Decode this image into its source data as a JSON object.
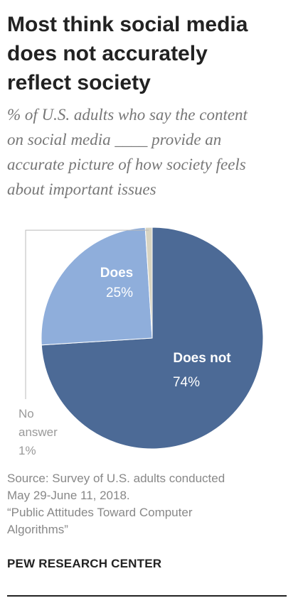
{
  "header": {
    "title_lines": [
      "Most think social media",
      "does not accurately",
      "reflect society"
    ],
    "subtitle_lines": [
      "% of U.S. adults who say the content",
      "on social media ____ provide an",
      "accurate picture of how society feels",
      "about important issues"
    ]
  },
  "chart_data": {
    "type": "pie",
    "title": "Most think social media does not accurately reflect society",
    "subtitle": "% of U.S. adults who say the content on social media ____ provide an accurate picture of how society feels about important issues",
    "slices": [
      {
        "label": "Does not",
        "value": 74,
        "value_label": "74%",
        "color": "#4c6a96",
        "text_color": "#ffffff",
        "bold_label": true
      },
      {
        "label": "Does",
        "value": 25,
        "value_label": "25%",
        "color": "#8faedb",
        "text_color": "#ffffff",
        "bold_label": true
      },
      {
        "label": "No answer",
        "value": 1,
        "value_label": "1%",
        "color": "#d8d4c2",
        "text_color": "#9a9a9a",
        "bold_label": false
      }
    ]
  },
  "footer": {
    "source_lines": [
      "Source: Survey of U.S. adults conducted",
      "May 29-June 11, 2018.",
      "“Public Attitudes Toward Computer",
      "Algorithms”"
    ],
    "brand": "PEW RESEARCH CENTER"
  }
}
